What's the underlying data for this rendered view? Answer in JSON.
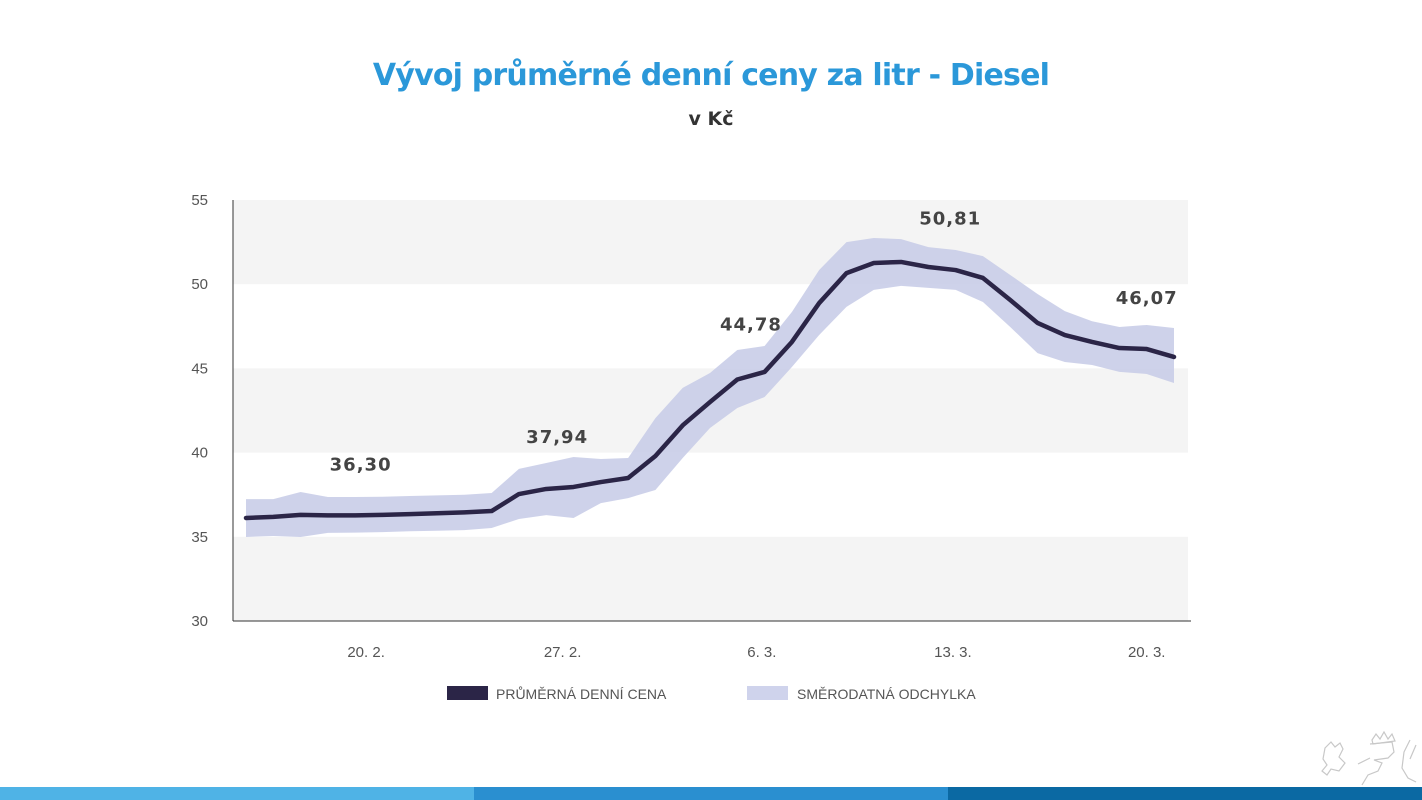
{
  "chart_data": {
    "type": "line",
    "title": "Vývoj průměrné denní ceny za litr - Diesel",
    "subtitle": "v Kč",
    "xlabel": "",
    "ylabel": "",
    "ylim": [
      30,
      55
    ],
    "yticks": [
      30,
      35,
      40,
      45,
      50,
      55
    ],
    "xlim": [
      0,
      34
    ],
    "xticks": [
      {
        "label": "20. 2.",
        "at": 4.4
      },
      {
        "label": "27. 2.",
        "at": 11.6
      },
      {
        "label": "6. 3.",
        "at": 18.9
      },
      {
        "label": "13. 3.",
        "at": 25.9
      },
      {
        "label": "20. 3.",
        "at": 33.0
      }
    ],
    "grid": "alternating horizontal bands",
    "legend_position": "bottom",
    "series": [
      {
        "name": "PRŮMĚRNÁ DENNÍ CENA",
        "color": "#2b2547",
        "values": [
          36.12,
          36.18,
          36.3,
          36.27,
          36.27,
          36.3,
          36.35,
          36.4,
          36.45,
          36.53,
          37.54,
          37.84,
          37.96,
          38.25,
          38.49,
          39.8,
          41.62,
          43.0,
          44.34,
          44.79,
          46.57,
          48.88,
          50.66,
          51.26,
          51.32,
          51.02,
          50.84,
          50.37,
          49.06,
          47.7,
          46.98,
          46.57,
          46.21,
          46.15,
          45.68
        ]
      },
      {
        "name": "SMĚRODATNÁ ODCHYLKA",
        "color": "#c5cae6",
        "upper": [
          37.24,
          37.24,
          37.66,
          37.36,
          37.36,
          37.38,
          37.42,
          37.46,
          37.5,
          37.6,
          39.03,
          39.38,
          39.74,
          39.62,
          39.68,
          42.05,
          43.84,
          44.73,
          46.09,
          46.33,
          48.35,
          50.84,
          52.5,
          52.74,
          52.68,
          52.2,
          52.03,
          51.67,
          50.55,
          49.42,
          48.4,
          47.8,
          47.46,
          47.58,
          47.4
        ],
        "lower": [
          34.99,
          35.05,
          34.99,
          35.23,
          35.25,
          35.28,
          35.33,
          35.36,
          35.4,
          35.52,
          36.06,
          36.29,
          36.12,
          37.0,
          37.3,
          37.78,
          39.68,
          41.46,
          42.65,
          43.3,
          45.08,
          46.98,
          48.65,
          49.66,
          49.9,
          49.78,
          49.66,
          48.94,
          47.46,
          45.91,
          45.38,
          45.2,
          44.79,
          44.67,
          44.13
        ]
      }
    ],
    "annotations": [
      {
        "text": "36,30",
        "at": 4.2
      },
      {
        "text": "37,94",
        "at": 11.4
      },
      {
        "text": "44,78",
        "at": 18.5
      },
      {
        "text": "50,81",
        "at": 25.8
      },
      {
        "text": "46,07",
        "at": 33.0
      }
    ]
  },
  "colors": {
    "title": "#2b98d9",
    "band_gray": "#f4f4f4",
    "bar1": "#4fb3e6",
    "bar2": "#2a8fd0",
    "bar3": "#0b69a3"
  }
}
